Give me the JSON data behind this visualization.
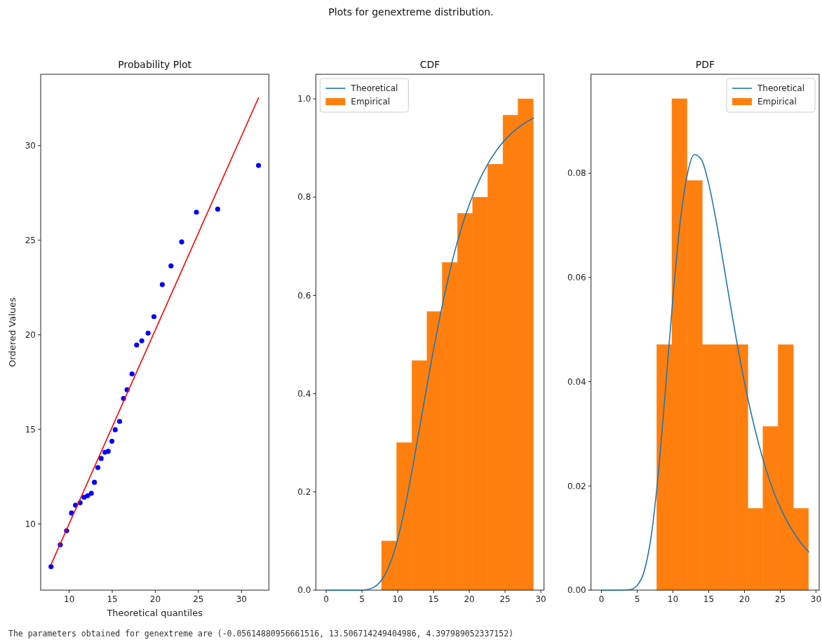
{
  "chart_data": [
    {
      "type": "scatter",
      "title": "Probability Plot",
      "xlabel": "Theoretical quantiles",
      "ylabel": "Ordered Values",
      "annotations": [
        "Plots for genextreme distribution.",
        "The parameters obtained for genextreme are (-0.05614880956661516, 13.506714249404986, 4.397989052337152)"
      ],
      "xlim": [
        6.69,
        33.18
      ],
      "ylim": [
        6.5,
        33.77
      ],
      "xticks": [
        10,
        15,
        20,
        25,
        30
      ],
      "yticks": [
        10,
        15,
        20,
        25,
        30
      ],
      "series": [
        {
          "marker": "circle",
          "color": "#0000ff",
          "x": [
            7.89,
            8.97,
            9.7,
            10.27,
            10.73,
            11.27,
            11.73,
            12.14,
            12.57,
            12.93,
            13.33,
            13.71,
            14.15,
            14.53,
            14.96,
            15.34,
            15.85,
            16.31,
            16.72,
            17.29,
            17.83,
            18.43,
            19.16,
            19.84,
            20.81,
            21.82,
            23.06,
            24.77,
            27.24,
            31.98
          ],
          "values": [
            7.74,
            8.9,
            9.64,
            10.58,
            10.99,
            11.12,
            11.41,
            11.49,
            11.62,
            12.2,
            12.98,
            13.46,
            13.79,
            13.84,
            14.37,
            14.98,
            15.42,
            16.63,
            17.09,
            17.93,
            19.46,
            19.68,
            20.09,
            20.96,
            22.65,
            23.64,
            24.91,
            26.48,
            26.64,
            28.95
          ]
        },
        {
          "type": "line",
          "color": "#ff0000",
          "x": [
            7.89,
            31.98
          ],
          "values": [
            7.85,
            32.53
          ]
        }
      ]
    },
    {
      "type": "histogram",
      "title": "CDF",
      "legend": "top left",
      "xlim": [
        -1.45,
        30.45
      ],
      "ylim": [
        0,
        1.05
      ],
      "xticks": [
        0,
        5,
        10,
        15,
        20,
        25,
        30
      ],
      "yticks": [
        {
          "value": 0,
          "label": "0.0"
        },
        {
          "value": 0.2,
          "label": "0.2"
        },
        {
          "value": 0.4,
          "label": "0.4"
        },
        {
          "value": 0.6,
          "label": "0.6"
        },
        {
          "value": 0.8,
          "label": "0.8"
        },
        {
          "value": 1,
          "label": "1.0"
        }
      ],
      "bins": [
        7.74,
        9.86,
        11.98,
        14.1,
        16.23,
        18.35,
        20.47,
        22.59,
        24.71,
        26.83,
        28.95
      ],
      "series": [
        {
          "name": "Theoretical",
          "type": "line",
          "color": "#1f77b4",
          "x": [
            0,
            2,
            4,
            5,
            6,
            7,
            8,
            9,
            10,
            11,
            12,
            13,
            14,
            15,
            16,
            17,
            18,
            19,
            20,
            22,
            24,
            26,
            28,
            29
          ],
          "values": [
            0,
            0,
            0,
            0,
            0.002,
            0.009,
            0.026,
            0.057,
            0.104,
            0.168,
            0.243,
            0.326,
            0.409,
            0.49,
            0.564,
            0.631,
            0.691,
            0.742,
            0.785,
            0.852,
            0.899,
            0.931,
            0.953,
            0.961
          ]
        },
        {
          "name": "Empirical",
          "color": "#ff7f0e",
          "values": [
            0.1,
            0.3,
            0.467,
            0.567,
            0.667,
            0.767,
            0.8,
            0.867,
            0.967,
            1.0
          ]
        }
      ]
    },
    {
      "type": "histogram",
      "title": "PDF",
      "legend": "top right",
      "xlim": [
        -1.45,
        30.45
      ],
      "ylim": [
        0,
        0.099
      ],
      "xticks": [
        0,
        5,
        10,
        15,
        20,
        25,
        30
      ],
      "yticks": [
        {
          "value": 0,
          "label": "0.00"
        },
        {
          "value": 0.02,
          "label": "0.02"
        },
        {
          "value": 0.04,
          "label": "0.04"
        },
        {
          "value": 0.06,
          "label": "0.06"
        },
        {
          "value": 0.08,
          "label": "0.08"
        }
      ],
      "bins": [
        7.74,
        9.86,
        11.98,
        14.1,
        16.23,
        18.35,
        20.47,
        22.59,
        24.71,
        26.83,
        28.95
      ],
      "series": [
        {
          "name": "Theoretical",
          "type": "line",
          "color": "#1f77b4",
          "x": [
            0,
            2,
            4,
            5,
            6,
            7,
            8,
            9,
            10,
            11,
            12,
            13,
            14,
            15,
            16,
            17,
            18,
            19,
            20,
            22,
            24,
            26,
            28,
            29
          ],
          "values": [
            0,
            0,
            0.0001,
            0.0009,
            0.0037,
            0.0107,
            0.023,
            0.0392,
            0.0561,
            0.0704,
            0.0797,
            0.0836,
            0.0826,
            0.078,
            0.0712,
            0.0632,
            0.055,
            0.0471,
            0.0399,
            0.028,
            0.0192,
            0.0131,
            0.0089,
            0.0073
          ]
        },
        {
          "name": "Empirical",
          "color": "#ff7f0e",
          "values": [
            0.0471,
            0.0943,
            0.0786,
            0.0471,
            0.0471,
            0.0471,
            0.0157,
            0.0314,
            0.0471,
            0.0157
          ]
        }
      ]
    }
  ]
}
